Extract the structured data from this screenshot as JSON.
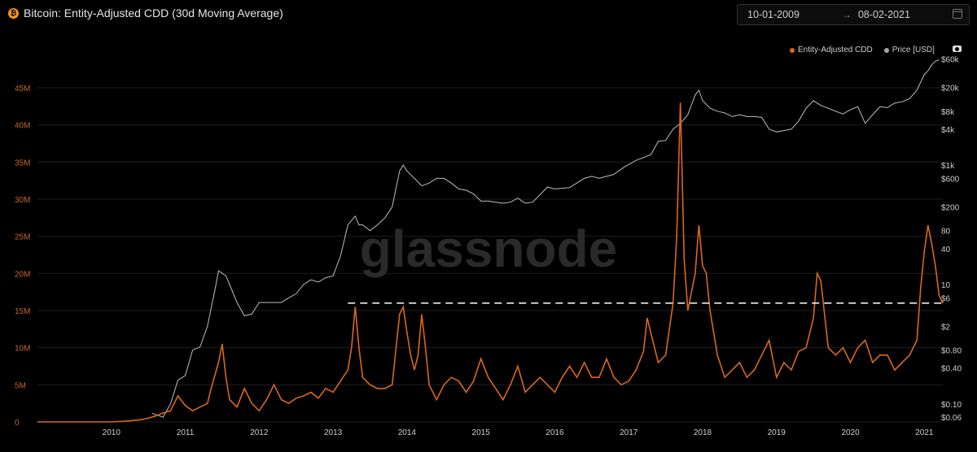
{
  "header": {
    "title": "Bitcoin: Entity-Adjusted CDD (30d Moving Average)",
    "icon": "bitcoin-icon",
    "date_from": "10-01-2009",
    "date_arrow": "→",
    "date_to": "08-02-2021"
  },
  "watermark": "glassnode",
  "colors": {
    "cdd": "#d9681c",
    "price": "#bdbdbd",
    "left_axis": "#c8652a",
    "right_axis": "#cfcfcf",
    "grid": "#1e1e1e"
  },
  "chart_data": {
    "type": "line",
    "x_ticks": [
      "2010",
      "2011",
      "2012",
      "2013",
      "2014",
      "2015",
      "2016",
      "2017",
      "2018",
      "2019",
      "2020",
      "2021"
    ],
    "left_axis": {
      "ticks": [
        "0",
        "5M",
        "10M",
        "15M",
        "20M",
        "25M",
        "30M",
        "35M",
        "40M",
        "45M"
      ],
      "range": [
        0,
        45000000
      ]
    },
    "right_axis": {
      "scale": "log",
      "ticks": [
        "$60k",
        "$20k",
        "$8k",
        "$4k",
        "$1k",
        "$600",
        "$200",
        "80",
        "40",
        "10",
        "$6",
        "$2",
        "$0.80",
        "$0.40",
        "$0.10",
        "$0.06"
      ],
      "range": [
        0.05,
        65000
      ]
    },
    "threshold_line": {
      "value": 16000000,
      "style": "dashed",
      "color": "#ffffff"
    },
    "legend": {
      "position": "top-right"
    },
    "series": [
      {
        "name": "Entity-Adjusted CDD",
        "axis": "left",
        "points": [
          [
            2009.0,
            0
          ],
          [
            2009.5,
            0
          ],
          [
            2010.0,
            0
          ],
          [
            2010.2,
            0.1
          ],
          [
            2010.4,
            0.3
          ],
          [
            2010.5,
            0.5
          ],
          [
            2010.6,
            0.8
          ],
          [
            2010.7,
            1.2
          ],
          [
            2010.8,
            1.5
          ],
          [
            2010.9,
            3.5
          ],
          [
            2011.0,
            2.2
          ],
          [
            2011.1,
            1.5
          ],
          [
            2011.2,
            2.0
          ],
          [
            2011.3,
            2.5
          ],
          [
            2011.35,
            4.5
          ],
          [
            2011.45,
            8
          ],
          [
            2011.5,
            10.5
          ],
          [
            2011.55,
            6
          ],
          [
            2011.6,
            3
          ],
          [
            2011.7,
            2
          ],
          [
            2011.8,
            4.5
          ],
          [
            2011.9,
            2.5
          ],
          [
            2012.0,
            1.5
          ],
          [
            2012.1,
            3
          ],
          [
            2012.2,
            5
          ],
          [
            2012.3,
            3
          ],
          [
            2012.4,
            2.5
          ],
          [
            2012.5,
            3.2
          ],
          [
            2012.6,
            3.5
          ],
          [
            2012.7,
            4
          ],
          [
            2012.8,
            3.2
          ],
          [
            2012.9,
            4.5
          ],
          [
            2013.0,
            4
          ],
          [
            2013.1,
            5.5
          ],
          [
            2013.2,
            7
          ],
          [
            2013.25,
            10
          ],
          [
            2013.3,
            15.5
          ],
          [
            2013.35,
            10
          ],
          [
            2013.4,
            6
          ],
          [
            2013.5,
            5
          ],
          [
            2013.6,
            4.5
          ],
          [
            2013.7,
            4.5
          ],
          [
            2013.8,
            5
          ],
          [
            2013.9,
            14.5
          ],
          [
            2013.95,
            15.5
          ],
          [
            2014.0,
            12
          ],
          [
            2014.05,
            9
          ],
          [
            2014.1,
            7
          ],
          [
            2014.15,
            9
          ],
          [
            2014.2,
            14.5
          ],
          [
            2014.25,
            10
          ],
          [
            2014.3,
            5
          ],
          [
            2014.4,
            3
          ],
          [
            2014.5,
            5
          ],
          [
            2014.6,
            6
          ],
          [
            2014.7,
            5.5
          ],
          [
            2014.8,
            4
          ],
          [
            2014.9,
            5.5
          ],
          [
            2015.0,
            8.5
          ],
          [
            2015.1,
            6
          ],
          [
            2015.2,
            4.5
          ],
          [
            2015.3,
            3
          ],
          [
            2015.4,
            5
          ],
          [
            2015.5,
            7.5
          ],
          [
            2015.6,
            4
          ],
          [
            2015.7,
            5
          ],
          [
            2015.8,
            6
          ],
          [
            2015.9,
            5
          ],
          [
            2016.0,
            4
          ],
          [
            2016.1,
            6
          ],
          [
            2016.2,
            7.5
          ],
          [
            2016.3,
            6
          ],
          [
            2016.4,
            8
          ],
          [
            2016.5,
            6
          ],
          [
            2016.6,
            6
          ],
          [
            2016.7,
            8.5
          ],
          [
            2016.8,
            6
          ],
          [
            2016.9,
            5
          ],
          [
            2017.0,
            5.5
          ],
          [
            2017.1,
            7
          ],
          [
            2017.2,
            9.5
          ],
          [
            2017.25,
            14
          ],
          [
            2017.3,
            12
          ],
          [
            2017.4,
            8
          ],
          [
            2017.5,
            9
          ],
          [
            2017.6,
            16
          ],
          [
            2017.65,
            25
          ],
          [
            2017.7,
            43
          ],
          [
            2017.75,
            22
          ],
          [
            2017.8,
            15
          ],
          [
            2017.9,
            20
          ],
          [
            2017.95,
            26.5
          ],
          [
            2018.0,
            21
          ],
          [
            2018.05,
            20
          ],
          [
            2018.1,
            15
          ],
          [
            2018.15,
            12
          ],
          [
            2018.2,
            9
          ],
          [
            2018.3,
            6
          ],
          [
            2018.4,
            7
          ],
          [
            2018.5,
            8
          ],
          [
            2018.6,
            6
          ],
          [
            2018.7,
            7
          ],
          [
            2018.8,
            9
          ],
          [
            2018.9,
            11
          ],
          [
            2019.0,
            6
          ],
          [
            2019.1,
            8
          ],
          [
            2019.2,
            7
          ],
          [
            2019.3,
            9.5
          ],
          [
            2019.4,
            10
          ],
          [
            2019.5,
            14
          ],
          [
            2019.55,
            20
          ],
          [
            2019.6,
            19
          ],
          [
            2019.7,
            10
          ],
          [
            2019.8,
            9
          ],
          [
            2019.9,
            10
          ],
          [
            2020.0,
            8
          ],
          [
            2020.1,
            10
          ],
          [
            2020.2,
            11
          ],
          [
            2020.3,
            8
          ],
          [
            2020.4,
            9
          ],
          [
            2020.5,
            9
          ],
          [
            2020.6,
            7
          ],
          [
            2020.7,
            8
          ],
          [
            2020.8,
            9
          ],
          [
            2020.9,
            11
          ],
          [
            2020.95,
            18
          ],
          [
            2021.0,
            23
          ],
          [
            2021.05,
            26.5
          ],
          [
            2021.1,
            24
          ],
          [
            2021.15,
            21
          ],
          [
            2021.2,
            17
          ],
          [
            2021.25,
            16
          ]
        ]
      },
      {
        "name": "Price [USD]",
        "axis": "right",
        "points": [
          [
            2010.55,
            0.07
          ],
          [
            2010.7,
            0.06
          ],
          [
            2010.8,
            0.1
          ],
          [
            2010.9,
            0.25
          ],
          [
            2011.0,
            0.3
          ],
          [
            2011.1,
            0.8
          ],
          [
            2011.2,
            0.9
          ],
          [
            2011.3,
            2
          ],
          [
            2011.4,
            8
          ],
          [
            2011.45,
            17
          ],
          [
            2011.55,
            14
          ],
          [
            2011.6,
            10
          ],
          [
            2011.7,
            5
          ],
          [
            2011.8,
            3
          ],
          [
            2011.9,
            3.2
          ],
          [
            2012.0,
            5
          ],
          [
            2012.1,
            5
          ],
          [
            2012.2,
            5
          ],
          [
            2012.3,
            5
          ],
          [
            2012.4,
            6
          ],
          [
            2012.5,
            7
          ],
          [
            2012.6,
            10
          ],
          [
            2012.7,
            12
          ],
          [
            2012.8,
            11
          ],
          [
            2012.9,
            13
          ],
          [
            2013.0,
            14
          ],
          [
            2013.1,
            30
          ],
          [
            2013.2,
            100
          ],
          [
            2013.3,
            140
          ],
          [
            2013.35,
            100
          ],
          [
            2013.4,
            100
          ],
          [
            2013.5,
            80
          ],
          [
            2013.6,
            100
          ],
          [
            2013.7,
            130
          ],
          [
            2013.8,
            200
          ],
          [
            2013.9,
            800
          ],
          [
            2013.95,
            1000
          ],
          [
            2014.0,
            800
          ],
          [
            2014.1,
            600
          ],
          [
            2014.2,
            450
          ],
          [
            2014.3,
            500
          ],
          [
            2014.4,
            600
          ],
          [
            2014.5,
            600
          ],
          [
            2014.6,
            500
          ],
          [
            2014.7,
            400
          ],
          [
            2014.8,
            380
          ],
          [
            2014.9,
            330
          ],
          [
            2015.0,
            250
          ],
          [
            2015.1,
            250
          ],
          [
            2015.2,
            240
          ],
          [
            2015.3,
            230
          ],
          [
            2015.4,
            240
          ],
          [
            2015.5,
            280
          ],
          [
            2015.6,
            230
          ],
          [
            2015.7,
            240
          ],
          [
            2015.8,
            320
          ],
          [
            2015.9,
            430
          ],
          [
            2016.0,
            400
          ],
          [
            2016.2,
            420
          ],
          [
            2016.4,
            600
          ],
          [
            2016.5,
            650
          ],
          [
            2016.6,
            600
          ],
          [
            2016.8,
            700
          ],
          [
            2016.95,
            950
          ],
          [
            2017.1,
            1200
          ],
          [
            2017.3,
            1500
          ],
          [
            2017.4,
            2500
          ],
          [
            2017.5,
            2600
          ],
          [
            2017.6,
            4000
          ],
          [
            2017.7,
            5000
          ],
          [
            2017.8,
            7000
          ],
          [
            2017.9,
            15000
          ],
          [
            2017.95,
            18000
          ],
          [
            2018.0,
            12000
          ],
          [
            2018.1,
            9000
          ],
          [
            2018.2,
            8000
          ],
          [
            2018.3,
            7500
          ],
          [
            2018.4,
            6500
          ],
          [
            2018.5,
            7000
          ],
          [
            2018.6,
            6500
          ],
          [
            2018.7,
            6500
          ],
          [
            2018.8,
            6300
          ],
          [
            2018.9,
            4000
          ],
          [
            2019.0,
            3600
          ],
          [
            2019.1,
            3800
          ],
          [
            2019.2,
            4000
          ],
          [
            2019.3,
            5500
          ],
          [
            2019.4,
            9000
          ],
          [
            2019.5,
            12000
          ],
          [
            2019.6,
            10000
          ],
          [
            2019.7,
            9000
          ],
          [
            2019.8,
            8000
          ],
          [
            2019.9,
            7200
          ],
          [
            2020.0,
            8500
          ],
          [
            2020.1,
            9500
          ],
          [
            2020.2,
            5000
          ],
          [
            2020.3,
            7000
          ],
          [
            2020.4,
            9500
          ],
          [
            2020.5,
            9200
          ],
          [
            2020.6,
            11000
          ],
          [
            2020.7,
            11500
          ],
          [
            2020.8,
            13000
          ],
          [
            2020.9,
            18000
          ],
          [
            2021.0,
            33000
          ],
          [
            2021.05,
            38000
          ],
          [
            2021.1,
            48000
          ],
          [
            2021.15,
            55000
          ],
          [
            2021.2,
            58000
          ]
        ]
      }
    ]
  }
}
